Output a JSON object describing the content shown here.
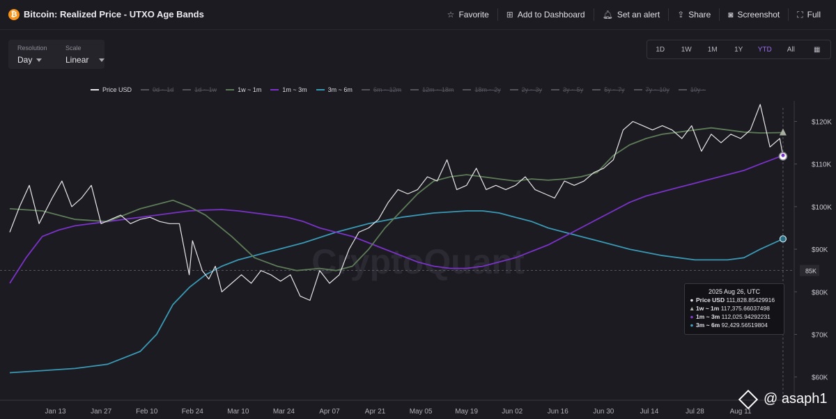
{
  "header": {
    "title": "Bitcoin: Realized Price - UTXO Age Bands",
    "logo_symbol": "₿",
    "actions": [
      {
        "label": "Favorite",
        "icon": "star-icon"
      },
      {
        "label": "Add to Dashboard",
        "icon": "dashboard-add-icon"
      },
      {
        "label": "Set an alert",
        "icon": "bell-icon"
      },
      {
        "label": "Share",
        "icon": "share-icon"
      },
      {
        "label": "Screenshot",
        "icon": "camera-icon"
      },
      {
        "label": "Full",
        "icon": "fullscreen-icon"
      }
    ]
  },
  "controls": {
    "resolution": {
      "label": "Resolution",
      "value": "Day"
    },
    "scale": {
      "label": "Scale",
      "value": "Linear"
    },
    "ranges": [
      "1D",
      "1W",
      "1M",
      "1Y",
      "YTD",
      "All"
    ],
    "active_range": "YTD"
  },
  "watermark_text": "CryptoQuant",
  "signature": "@ asaph1",
  "tooltip": {
    "title": "2025 Aug 26, UTC",
    "rows": [
      {
        "mark": "●",
        "name": "Price USD",
        "value": "111,828.85429916",
        "color": "#e8e8e8"
      },
      {
        "mark": "▲",
        "name": "1w ~ 1m",
        "value": "117,375.66037498",
        "color": "#b0b8a8"
      },
      {
        "mark": "●",
        "name": "1m ~ 3m",
        "value": "112,025.94292231",
        "color": "#8a3cd6"
      },
      {
        "mark": "●",
        "name": "3m ~ 6m",
        "value": "92,429.56519804",
        "color": "#3fa0bf"
      }
    ]
  },
  "chart_data": {
    "type": "line",
    "title": "Bitcoin: Realized Price - UTXO Age Bands",
    "x_ticks": [
      "Jan 13",
      "Jan 27",
      "Feb 10",
      "Feb 24",
      "Mar 10",
      "Mar 24",
      "Apr 07",
      "Apr 21",
      "May 05",
      "May 19",
      "Jun 02",
      "Jun 16",
      "Jun 30",
      "Jul 14",
      "Jul 28",
      "Aug 11"
    ],
    "y_ticks": [
      "$60K",
      "$70K",
      "$80K",
      "$90K",
      "$100K",
      "$110K",
      "$120K"
    ],
    "ylim": [
      57000,
      124000
    ],
    "crosshair_y_label": "85K",
    "crosshair_y_value": 85000,
    "legend": [
      {
        "name": "Price USD",
        "visible": true,
        "color": "#e8e8e8"
      },
      {
        "name": "0d ~ 1d",
        "visible": false,
        "color": "#55545c"
      },
      {
        "name": "1d ~ 1w",
        "visible": false,
        "color": "#55545c"
      },
      {
        "name": "1w ~ 1m",
        "visible": true,
        "color": "#5e7c58"
      },
      {
        "name": "1m ~ 3m",
        "visible": true,
        "color": "#7a32c8"
      },
      {
        "name": "3m ~ 6m",
        "visible": true,
        "color": "#3a9ab5"
      },
      {
        "name": "6m ~ 12m",
        "visible": false,
        "color": "#55545c"
      },
      {
        "name": "12m ~ 18m",
        "visible": false,
        "color": "#55545c"
      },
      {
        "name": "18m ~ 2y",
        "visible": false,
        "color": "#55545c"
      },
      {
        "name": "2y ~ 3y",
        "visible": false,
        "color": "#55545c"
      },
      {
        "name": "3y ~ 5y",
        "visible": false,
        "color": "#55545c"
      },
      {
        "name": "5y ~ 7y",
        "visible": false,
        "color": "#55545c"
      },
      {
        "name": "7y ~ 10y",
        "visible": false,
        "color": "#55545c"
      },
      {
        "name": "10y ~",
        "visible": false,
        "color": "#55545c"
      }
    ],
    "series": [
      {
        "name": "Price USD",
        "color": "#e8e8e8",
        "x": [
          0,
          3,
          6,
          9,
          13,
          16,
          19,
          22,
          25,
          28,
          31,
          34,
          37,
          40,
          43,
          46,
          49,
          52,
          55,
          56,
          59,
          61,
          63,
          65,
          68,
          71,
          74,
          77,
          80,
          83,
          86,
          89,
          92,
          95,
          98,
          101,
          104,
          107,
          110,
          113,
          116,
          119,
          122,
          125,
          128,
          131,
          134,
          137,
          140,
          143,
          146,
          149,
          152,
          155,
          158,
          161,
          164,
          167,
          170,
          173,
          176,
          179,
          182,
          185,
          188,
          191,
          194,
          197,
          200,
          203,
          206,
          209,
          212,
          215,
          218,
          221,
          224,
          227,
          230,
          233,
          236,
          237
        ],
        "values": [
          94000,
          100000,
          105000,
          96000,
          102000,
          106000,
          100000,
          102000,
          105000,
          96000,
          97000,
          98000,
          96000,
          97000,
          97500,
          96500,
          96000,
          96000,
          84000,
          92000,
          85000,
          83000,
          86000,
          80000,
          82000,
          84000,
          82000,
          85000,
          84000,
          82500,
          84000,
          79000,
          78000,
          85000,
          82000,
          84000,
          90000,
          94000,
          95000,
          97000,
          101000,
          104000,
          103000,
          104000,
          107000,
          106000,
          111000,
          104000,
          105000,
          109000,
          104000,
          105000,
          104000,
          105000,
          107000,
          104000,
          103000,
          102000,
          106000,
          105000,
          106000,
          108000,
          109000,
          111000,
          118000,
          120000,
          119000,
          118000,
          119000,
          118000,
          116000,
          119000,
          113000,
          117000,
          115000,
          117000,
          116000,
          118000,
          124000,
          114000,
          116000,
          111828
        ]
      },
      {
        "name": "1w ~ 1m",
        "color": "#5e7c58",
        "x": [
          0,
          10,
          20,
          30,
          40,
          50,
          55,
          60,
          68,
          75,
          82,
          88,
          95,
          100,
          105,
          110,
          115,
          120,
          125,
          130,
          135,
          140,
          145,
          150,
          155,
          160,
          165,
          170,
          175,
          180,
          185,
          190,
          195,
          200,
          205,
          210,
          215,
          220,
          225,
          230,
          237
        ],
        "values": [
          99500,
          99000,
          97000,
          96500,
          99500,
          101500,
          100000,
          98000,
          93000,
          88000,
          86000,
          85000,
          85500,
          85000,
          86000,
          90000,
          95000,
          99000,
          103000,
          106000,
          107000,
          107500,
          107000,
          106500,
          106000,
          106500,
          106200,
          106500,
          107000,
          108000,
          112000,
          114500,
          116000,
          117000,
          117500,
          118000,
          118500,
          118000,
          117500,
          117300,
          117375.66
        ]
      },
      {
        "name": "1m ~ 3m",
        "color": "#7a32c8",
        "x": [
          0,
          5,
          10,
          15,
          20,
          25,
          30,
          35,
          40,
          45,
          50,
          55,
          60,
          65,
          70,
          75,
          80,
          85,
          90,
          95,
          100,
          105,
          110,
          115,
          120,
          125,
          130,
          135,
          140,
          145,
          150,
          155,
          160,
          165,
          170,
          175,
          180,
          185,
          190,
          195,
          200,
          205,
          210,
          215,
          220,
          225,
          230,
          237
        ],
        "values": [
          82000,
          88000,
          93000,
          94500,
          95500,
          96000,
          96500,
          97000,
          97500,
          98000,
          98500,
          99000,
          99200,
          99300,
          99000,
          98500,
          98000,
          97500,
          96500,
          95000,
          94000,
          93000,
          91500,
          90000,
          88500,
          87000,
          86000,
          85500,
          85500,
          86000,
          87000,
          88000,
          89500,
          91000,
          93000,
          95000,
          97000,
          99000,
          101000,
          102500,
          103500,
          104500,
          105500,
          106500,
          107500,
          108500,
          110000,
          112025.94
        ]
      },
      {
        "name": "3m ~ 6m",
        "color": "#3a9ab5",
        "x": [
          0,
          10,
          20,
          30,
          40,
          45,
          50,
          55,
          60,
          65,
          70,
          75,
          80,
          90,
          100,
          110,
          120,
          130,
          140,
          145,
          150,
          155,
          160,
          165,
          170,
          175,
          180,
          190,
          200,
          210,
          220,
          225,
          230,
          237
        ],
        "values": [
          61000,
          61500,
          62000,
          63000,
          66000,
          70000,
          77000,
          81000,
          84000,
          86000,
          87500,
          88500,
          89500,
          91500,
          94000,
          96000,
          97500,
          98500,
          99000,
          99000,
          98500,
          97500,
          96500,
          95000,
          94000,
          93000,
          92000,
          90000,
          88500,
          87500,
          87500,
          88000,
          90000,
          92429.57
        ]
      }
    ],
    "x_domain": [
      0,
      240
    ],
    "tick_positions": [
      14,
      28,
      42,
      56,
      70,
      84,
      98,
      112,
      126,
      140,
      154,
      168,
      182,
      196,
      210,
      224
    ]
  }
}
